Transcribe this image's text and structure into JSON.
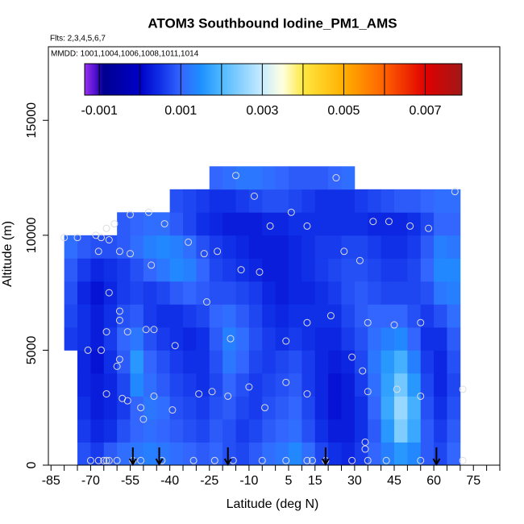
{
  "chart_data": {
    "type": "heatmap",
    "title": "ATOM3 Southbound Iodine_PM1_AMS",
    "annotations": [
      "Flts: 2,3,4,5,6,7",
      "MMDD: 1001,1004,1006,1008,1011,1014"
    ],
    "xlabel": "Latitude (deg N)",
    "ylabel": "Altitude (m)",
    "xlim": [
      -86,
      85
    ],
    "ylim": [
      0,
      18200
    ],
    "xticks": [
      -85,
      -70,
      -55,
      -40,
      -25,
      -10,
      5,
      15,
      30,
      45,
      60,
      75
    ],
    "xminorticks": [
      -85,
      -80,
      -75,
      -70,
      -65,
      -60,
      -55,
      -50,
      -45,
      -40,
      -35,
      -30,
      -25,
      -20,
      -15,
      -10,
      -5,
      0,
      5,
      10,
      15,
      20,
      25,
      30,
      35,
      40,
      45,
      50,
      55,
      60,
      65,
      70,
      75,
      80,
      85
    ],
    "yticks": [
      0,
      5000,
      10000,
      15000
    ],
    "xbins": [
      -80,
      -75,
      -70,
      -65,
      -60,
      -55,
      -50,
      -45,
      -40,
      -35,
      -30,
      -25,
      -20,
      -15,
      -10,
      -5,
      0,
      5,
      10,
      15,
      20,
      25,
      30,
      35,
      40,
      45,
      50,
      55,
      60,
      65,
      70
    ],
    "ybins": [
      0,
      1000,
      2000,
      3000,
      4000,
      5000,
      6000,
      7000,
      8000,
      9000,
      10000,
      11000,
      12000,
      13000
    ],
    "z": [
      [
        null,
        0.0008,
        0.0006,
        0.0009,
        0.0011,
        0.0012,
        0.0013,
        0.0012,
        0.0011,
        0.001,
        0.0009,
        0.001,
        0.0008,
        0.0007,
        0.0009,
        0.0011,
        0.0012,
        0.0014,
        0.0011,
        0.0007,
        0.0005,
        0.0004,
        0.0006,
        0.001,
        0.0013,
        0.0016,
        0.0014,
        0.0009,
        0.0007,
        0.001
      ],
      [
        null,
        0.0006,
        0.0004,
        0.0005,
        0.0008,
        0.001,
        0.0011,
        0.001,
        0.0009,
        0.0008,
        0.0007,
        0.0009,
        0.0008,
        0.0006,
        0.0007,
        0.0009,
        0.001,
        0.0011,
        0.0008,
        0.0005,
        0.0003,
        0.0003,
        0.0005,
        0.0009,
        0.0016,
        0.0024,
        0.0018,
        0.0009,
        0.0006,
        0.0009
      ],
      [
        null,
        0.0005,
        0.0003,
        0.0004,
        0.0006,
        0.001,
        0.0012,
        0.0011,
        0.0008,
        0.0007,
        0.0006,
        0.0008,
        0.0009,
        0.0007,
        0.0006,
        0.0008,
        0.0009,
        0.001,
        0.0007,
        0.0004,
        0.0002,
        0.0003,
        0.0005,
        0.001,
        0.0018,
        0.0026,
        0.0019,
        0.0008,
        0.0005,
        0.0008
      ],
      [
        null,
        0.0004,
        0.0003,
        0.0004,
        0.0007,
        0.0014,
        0.0011,
        0.0009,
        0.0007,
        0.0006,
        0.0005,
        0.0007,
        0.001,
        0.0008,
        0.0006,
        0.0007,
        0.0008,
        0.0009,
        0.0006,
        0.0004,
        0.0002,
        0.0003,
        0.0006,
        0.0011,
        0.0017,
        0.0023,
        0.0016,
        0.0007,
        0.0004,
        0.0007
      ],
      [
        null,
        0.0004,
        0.0002,
        0.0005,
        0.0009,
        0.0016,
        0.001,
        0.0008,
        0.0006,
        0.0005,
        0.0005,
        0.0008,
        0.0012,
        0.001,
        0.0007,
        0.0006,
        0.0007,
        0.0008,
        0.0006,
        0.0004,
        0.0003,
        0.0004,
        0.0007,
        0.0012,
        0.0016,
        0.0019,
        0.0013,
        0.0006,
        0.0004,
        0.0008
      ],
      [
        0.0006,
        0.0005,
        0.0003,
        0.0006,
        0.001,
        0.0012,
        0.0008,
        0.0006,
        0.0005,
        0.0004,
        0.0005,
        0.0009,
        0.0013,
        0.0011,
        0.0008,
        0.0006,
        0.0005,
        0.0006,
        0.0005,
        0.0004,
        0.0004,
        0.0006,
        0.0008,
        0.0011,
        0.0013,
        0.0014,
        0.001,
        0.0005,
        0.0005,
        0.0009
      ],
      [
        0.0007,
        0.0005,
        0.0003,
        0.0005,
        0.0008,
        0.0009,
        0.0006,
        0.0005,
        0.0005,
        0.0006,
        0.0007,
        0.001,
        0.0011,
        0.0009,
        0.0007,
        0.0005,
        0.0004,
        0.0005,
        0.0005,
        0.0005,
        0.0005,
        0.0007,
        0.0009,
        0.001,
        0.001,
        0.001,
        0.0008,
        0.0006,
        0.0008,
        0.0011
      ],
      [
        0.0008,
        0.0004,
        0.0002,
        0.0004,
        0.0006,
        0.0007,
        0.0006,
        0.0007,
        0.0009,
        0.001,
        0.0009,
        0.0008,
        0.0008,
        0.0007,
        0.0006,
        0.0004,
        0.0003,
        0.0004,
        0.0004,
        0.0005,
        0.0006,
        0.0008,
        0.0009,
        0.0008,
        0.0007,
        0.0007,
        0.0007,
        0.0008,
        0.0012,
        0.0013
      ],
      [
        0.0009,
        0.0006,
        0.0004,
        0.0005,
        0.0006,
        0.0008,
        0.001,
        0.0012,
        0.0014,
        0.0013,
        0.001,
        0.0007,
        0.0006,
        0.0005,
        0.0004,
        0.0003,
        0.0003,
        0.0004,
        0.0005,
        0.0006,
        0.0007,
        0.0008,
        0.0008,
        0.0007,
        0.0006,
        0.0006,
        0.0007,
        0.001,
        0.0014,
        0.0014
      ],
      [
        0.0011,
        0.0009,
        0.0008,
        0.0008,
        0.0009,
        0.0011,
        0.0013,
        0.0014,
        0.0013,
        0.0011,
        0.0008,
        0.0006,
        0.0005,
        0.0004,
        0.0003,
        0.0003,
        0.0003,
        0.0004,
        0.0005,
        0.0006,
        0.0006,
        0.0007,
        0.0007,
        0.0006,
        0.0005,
        0.0005,
        0.0006,
        0.0009,
        0.0013,
        0.0012
      ],
      [
        null,
        null,
        null,
        null,
        0.0009,
        0.001,
        0.0011,
        0.0011,
        0.0009,
        0.0007,
        0.0005,
        0.0004,
        0.0003,
        0.0003,
        0.0003,
        0.0004,
        0.0004,
        0.0005,
        0.0005,
        0.0005,
        0.0005,
        0.0005,
        0.0005,
        0.0004,
        0.0004,
        0.0004,
        0.0005,
        0.0007,
        0.001,
        0.001
      ],
      [
        null,
        null,
        null,
        null,
        null,
        null,
        null,
        null,
        0.0008,
        0.0007,
        0.0006,
        0.0005,
        0.0005,
        0.0006,
        0.0007,
        0.0008,
        0.0008,
        0.0007,
        0.0006,
        0.0005,
        0.0005,
        0.0005,
        0.0006,
        0.0007,
        0.0008,
        0.0009,
        0.0009,
        0.001,
        0.0011,
        0.0011
      ],
      [
        null,
        null,
        null,
        null,
        null,
        null,
        null,
        null,
        null,
        null,
        null,
        0.001,
        0.0011,
        0.0012,
        0.0012,
        0.0011,
        0.001,
        0.0009,
        0.0009,
        0.0009,
        0.001,
        0.0011,
        null,
        null,
        null,
        null,
        null,
        null,
        null,
        null
      ]
    ],
    "colorbar": {
      "lim": [
        -0.00136,
        0.0079
      ],
      "ticks": [
        -0.001,
        0.001,
        0.003,
        0.005,
        0.007
      ],
      "breaks": [
        -0.001,
        0,
        0.001,
        0.002,
        0.003,
        0.004,
        0.005,
        0.006,
        0.007
      ],
      "stops": [
        {
          "value": -0.00136,
          "color": "#9a30f0"
        },
        {
          "value": -0.0011,
          "color": "#5010d0"
        },
        {
          "value": -0.0009,
          "color": "#000090"
        },
        {
          "value": 0,
          "color": "#0000c8"
        },
        {
          "value": 0.0005,
          "color": "#1030e8"
        },
        {
          "value": 0.001,
          "color": "#3366ff"
        },
        {
          "value": 0.0015,
          "color": "#1e90ff"
        },
        {
          "value": 0.002,
          "color": "#4fb8ff"
        },
        {
          "value": 0.003,
          "color": "#c8ecff"
        },
        {
          "value": 0.0035,
          "color": "#ffffe0"
        },
        {
          "value": 0.004,
          "color": "#ffe840"
        },
        {
          "value": 0.005,
          "color": "#ffb000"
        },
        {
          "value": 0.006,
          "color": "#ff6000"
        },
        {
          "value": 0.007,
          "color": "#e00000"
        },
        {
          "value": 0.0079,
          "color": "#a01818"
        }
      ]
    },
    "points": {
      "color": "#dddddd",
      "x": [
        -80,
        -75,
        -68,
        -66,
        -64,
        -63,
        -61,
        -67,
        -59,
        -55,
        -55,
        -48,
        -47,
        -42,
        -33,
        -27,
        -22,
        -15,
        -8,
        6,
        -2,
        12,
        23,
        37,
        43,
        51,
        58,
        68,
        -13,
        -6,
        26,
        32,
        21,
        12,
        35,
        45,
        55,
        -71,
        -66,
        -59,
        -63,
        -59,
        -64,
        -56,
        -49,
        -46,
        -38,
        -26,
        -17,
        4,
        29,
        33,
        35,
        46,
        55,
        71,
        -60,
        -59,
        -64,
        -58,
        -56,
        -46,
        -51,
        -50,
        -39,
        -29,
        -24,
        -18,
        -10,
        -4,
        4,
        12,
        34,
        34,
        -70,
        -67,
        -65,
        -64,
        -63,
        -60,
        -54,
        -51,
        -43,
        -31,
        -23,
        -16,
        -5,
        4,
        12,
        14,
        19,
        29,
        35,
        42,
        55,
        71
      ],
      "y": [
        9900,
        9900,
        10000,
        9900,
        10300,
        9800,
        10500,
        9300,
        9300,
        9200,
        10900,
        11000,
        8700,
        10500,
        9700,
        9200,
        9300,
        12600,
        11700,
        11000,
        10400,
        10400,
        12500,
        10600,
        10600,
        10400,
        10300,
        11900,
        8500,
        8400,
        9300,
        8900,
        6500,
        6200,
        6200,
        6100,
        6200,
        5000,
        5000,
        6300,
        7500,
        6700,
        5800,
        5800,
        5900,
        5900,
        5200,
        7100,
        5500,
        5400,
        4700,
        4100,
        3200,
        3300,
        3000,
        3300,
        4300,
        4600,
        3100,
        2900,
        2800,
        3000,
        2500,
        2000,
        2400,
        3100,
        3200,
        3000,
        3400,
        2500,
        3600,
        3100,
        1000,
        700,
        200,
        200,
        200,
        200,
        200,
        200,
        200,
        200,
        200,
        200,
        200,
        200,
        200,
        200,
        200,
        200,
        200,
        200,
        200,
        200,
        200,
        200
      ]
    },
    "markers": [
      -54,
      -44,
      -18,
      19,
      61
    ]
  }
}
